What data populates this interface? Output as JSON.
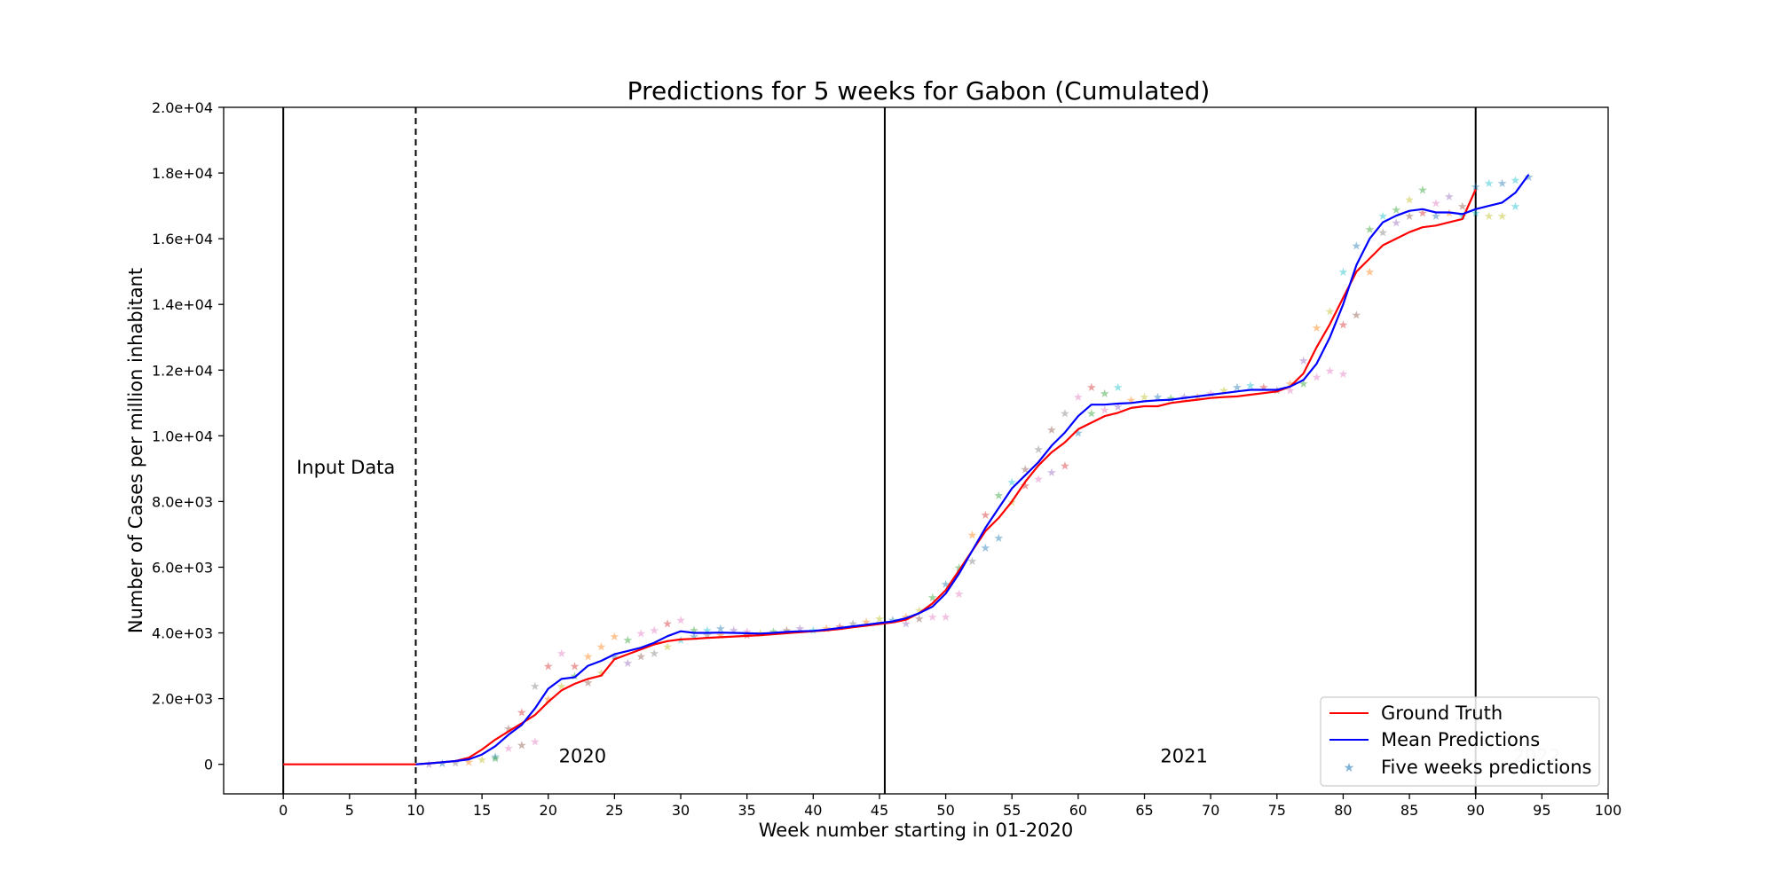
{
  "chart_data": {
    "type": "line",
    "title": "Predictions for 5 weeks for Gabon (Cumulated)",
    "xlabel": "Week number starting in 01-2020",
    "ylabel": "Number of Cases per million inhabitant",
    "xlim": [
      -4.5,
      100
    ],
    "ylim": [
      -900,
      20000
    ],
    "x_ticks": [
      0,
      5,
      10,
      15,
      20,
      25,
      30,
      35,
      40,
      45,
      50,
      55,
      60,
      65,
      70,
      75,
      80,
      85,
      90,
      95,
      100
    ],
    "x_tick_labels": [
      "0",
      "5",
      "10",
      "15",
      "20",
      "25",
      "30",
      "35",
      "40",
      "45",
      "50",
      "55",
      "60",
      "65",
      "70",
      "75",
      "80",
      "85",
      "90",
      "95",
      "100"
    ],
    "y_ticks": [
      0,
      2000,
      4000,
      6000,
      8000,
      10000,
      12000,
      14000,
      16000,
      18000,
      20000
    ],
    "y_tick_labels": [
      "0",
      "2.0e+03",
      "4.0e+03",
      "6.0e+03",
      "8.0e+03",
      "1.0e+04",
      "1.2e+04",
      "1.4e+04",
      "1.6e+04",
      "1.8e+04",
      "2.0e+04"
    ],
    "grid": false,
    "legend_position": "bottom-right",
    "vertical_lines": [
      {
        "x": 0,
        "style": "solid"
      },
      {
        "x": 10,
        "style": "dashed"
      },
      {
        "x": 45.4,
        "style": "solid"
      },
      {
        "x": 90,
        "style": "solid"
      }
    ],
    "annotations": [
      {
        "text": "Input Data",
        "x": 1,
        "y": 8800
      },
      {
        "text": "2020",
        "x": 20.8,
        "y": 0
      },
      {
        "text": "2021",
        "x": 66.2,
        "y": 0
      },
      {
        "text": "2022",
        "x": 92.8,
        "y": 0,
        "faded": true
      }
    ],
    "series": [
      {
        "name": "Ground Truth",
        "color": "#ff0000",
        "x": [
          0,
          1,
          2,
          3,
          4,
          5,
          6,
          7,
          8,
          9,
          10,
          11,
          12,
          13,
          14,
          15,
          16,
          17,
          18,
          19,
          20,
          21,
          22,
          23,
          24,
          25,
          26,
          27,
          28,
          29,
          30,
          31,
          32,
          33,
          34,
          35,
          36,
          37,
          38,
          39,
          40,
          41,
          42,
          43,
          44,
          45,
          46,
          47,
          48,
          49,
          50,
          51,
          52,
          53,
          54,
          55,
          56,
          57,
          58,
          59,
          60,
          61,
          62,
          63,
          64,
          65,
          66,
          67,
          68,
          69,
          70,
          71,
          72,
          73,
          74,
          75,
          76,
          77,
          78,
          79,
          80,
          81,
          82,
          83,
          84,
          85,
          86,
          87,
          88,
          89,
          90
        ],
        "y": [
          0,
          0,
          0,
          0,
          0,
          0,
          0,
          0,
          0,
          0,
          0,
          30,
          60,
          100,
          200,
          450,
          750,
          1000,
          1250,
          1500,
          1900,
          2250,
          2450,
          2600,
          2700,
          3200,
          3350,
          3500,
          3650,
          3750,
          3800,
          3820,
          3850,
          3870,
          3890,
          3910,
          3930,
          3960,
          3990,
          4020,
          4050,
          4080,
          4120,
          4170,
          4220,
          4270,
          4320,
          4400,
          4600,
          4900,
          5300,
          5900,
          6500,
          7100,
          7500,
          8000,
          8600,
          9100,
          9500,
          9800,
          10200,
          10400,
          10600,
          10700,
          10850,
          10900,
          10900,
          11000,
          11050,
          11100,
          11150,
          11180,
          11200,
          11250,
          11300,
          11350,
          11500,
          11900,
          12700,
          13400,
          14200,
          15000,
          15400,
          15800,
          16000,
          16200,
          16350,
          16400,
          16500,
          16600,
          17500
        ]
      },
      {
        "name": "Mean Predictions",
        "color": "#0000ff",
        "x": [
          10,
          11,
          12,
          13,
          14,
          15,
          16,
          17,
          18,
          19,
          20,
          21,
          22,
          23,
          24,
          25,
          26,
          27,
          28,
          29,
          30,
          31,
          32,
          33,
          34,
          35,
          36,
          37,
          38,
          39,
          40,
          41,
          42,
          43,
          44,
          45,
          46,
          47,
          48,
          49,
          50,
          51,
          52,
          53,
          54,
          55,
          56,
          57,
          58,
          59,
          60,
          61,
          62,
          63,
          64,
          65,
          66,
          67,
          68,
          69,
          70,
          71,
          72,
          73,
          74,
          75,
          76,
          77,
          78,
          79,
          80,
          81,
          82,
          83,
          84,
          85,
          86,
          87,
          88,
          89,
          90,
          91,
          92,
          93,
          94
        ],
        "y": [
          0,
          30,
          60,
          100,
          150,
          300,
          550,
          900,
          1200,
          1700,
          2300,
          2600,
          2650,
          3000,
          3150,
          3350,
          3450,
          3550,
          3700,
          3900,
          4050,
          4000,
          4000,
          4010,
          4000,
          3990,
          3980,
          4000,
          4030,
          4050,
          4060,
          4100,
          4150,
          4200,
          4250,
          4300,
          4350,
          4450,
          4600,
          4800,
          5200,
          5800,
          6500,
          7200,
          7800,
          8400,
          8800,
          9200,
          9700,
          10100,
          10600,
          10950,
          10950,
          10980,
          11000,
          11050,
          11080,
          11100,
          11150,
          11200,
          11250,
          11300,
          11350,
          11400,
          11400,
          11400,
          11500,
          11700,
          12200,
          13000,
          14000,
          15200,
          16000,
          16500,
          16700,
          16850,
          16900,
          16800,
          16800,
          16750,
          16900,
          17000,
          17100,
          17400,
          17950
        ]
      },
      {
        "name": "Five weeks predictions",
        "color": "#7fb3d5",
        "marker": "star"
      }
    ]
  },
  "scatter_palette": [
    "#1f77b4",
    "#ff7f0e",
    "#2ca02c",
    "#d62728",
    "#9467bd",
    "#8c564b",
    "#e377c2",
    "#7f7f7f",
    "#bcbd22",
    "#17becf"
  ],
  "scatter_points": [
    {
      "x": 11,
      "y": 20,
      "c": 4
    },
    {
      "x": 12,
      "y": 40,
      "c": 0
    },
    {
      "x": 13,
      "y": 60,
      "c": 7
    },
    {
      "x": 14,
      "y": 90,
      "c": 1
    },
    {
      "x": 15,
      "y": 150,
      "c": 8
    },
    {
      "x": 16,
      "y": 250,
      "c": 0
    },
    {
      "x": 16,
      "y": 200,
      "c": 2
    },
    {
      "x": 17,
      "y": 1100,
      "c": 5
    },
    {
      "x": 17,
      "y": 500,
      "c": 6
    },
    {
      "x": 18,
      "y": 1600,
      "c": 3
    },
    {
      "x": 18,
      "y": 600,
      "c": 5
    },
    {
      "x": 19,
      "y": 2400,
      "c": 7
    },
    {
      "x": 19,
      "y": 700,
      "c": 6
    },
    {
      "x": 20,
      "y": 3000,
      "c": 3
    },
    {
      "x": 20,
      "y": 2000,
      "c": 1
    },
    {
      "x": 21,
      "y": 3400,
      "c": 6
    },
    {
      "x": 21,
      "y": 2400,
      "c": 8
    },
    {
      "x": 22,
      "y": 3000,
      "c": 3
    },
    {
      "x": 22,
      "y": 2700,
      "c": 2
    },
    {
      "x": 23,
      "y": 3300,
      "c": 1
    },
    {
      "x": 23,
      "y": 2500,
      "c": 5
    },
    {
      "x": 24,
      "y": 3600,
      "c": 1
    },
    {
      "x": 24,
      "y": 2800,
      "c": 8
    },
    {
      "x": 25,
      "y": 3900,
      "c": 1
    },
    {
      "x": 25,
      "y": 3300,
      "c": 0
    },
    {
      "x": 26,
      "y": 3800,
      "c": 2
    },
    {
      "x": 26,
      "y": 3100,
      "c": 4
    },
    {
      "x": 27,
      "y": 4000,
      "c": 6
    },
    {
      "x": 27,
      "y": 3300,
      "c": 5
    },
    {
      "x": 28,
      "y": 4100,
      "c": 6
    },
    {
      "x": 28,
      "y": 3400,
      "c": 7
    },
    {
      "x": 29,
      "y": 4300,
      "c": 3
    },
    {
      "x": 29,
      "y": 3600,
      "c": 8
    },
    {
      "x": 30,
      "y": 4400,
      "c": 6
    },
    {
      "x": 30,
      "y": 3800,
      "c": 9
    },
    {
      "x": 31,
      "y": 4100,
      "c": 2
    },
    {
      "x": 31,
      "y": 3900,
      "c": 0
    },
    {
      "x": 32,
      "y": 4100,
      "c": 9
    },
    {
      "x": 32,
      "y": 3950,
      "c": 7
    },
    {
      "x": 33,
      "y": 4150,
      "c": 0
    },
    {
      "x": 33,
      "y": 3950,
      "c": 1
    },
    {
      "x": 34,
      "y": 4100,
      "c": 4
    },
    {
      "x": 35,
      "y": 4050,
      "c": 6
    },
    {
      "x": 35,
      "y": 3950,
      "c": 3
    },
    {
      "x": 36,
      "y": 4000,
      "c": 8
    },
    {
      "x": 37,
      "y": 4050,
      "c": 2
    },
    {
      "x": 38,
      "y": 4100,
      "c": 5
    },
    {
      "x": 39,
      "y": 4150,
      "c": 4
    },
    {
      "x": 40,
      "y": 4100,
      "c": 9
    },
    {
      "x": 41,
      "y": 4150,
      "c": 1
    },
    {
      "x": 42,
      "y": 4200,
      "c": 3
    },
    {
      "x": 43,
      "y": 4300,
      "c": 7
    },
    {
      "x": 44,
      "y": 4350,
      "c": 1
    },
    {
      "x": 45,
      "y": 4450,
      "c": 8
    },
    {
      "x": 46,
      "y": 4400,
      "c": 0
    },
    {
      "x": 47,
      "y": 4500,
      "c": 1
    },
    {
      "x": 47,
      "y": 4300,
      "c": 4
    },
    {
      "x": 48,
      "y": 4700,
      "c": 8
    },
    {
      "x": 48,
      "y": 4450,
      "c": 5
    },
    {
      "x": 49,
      "y": 5100,
      "c": 2
    },
    {
      "x": 49,
      "y": 4500,
      "c": 6
    },
    {
      "x": 50,
      "y": 5500,
      "c": 0
    },
    {
      "x": 50,
      "y": 4500,
      "c": 6
    },
    {
      "x": 51,
      "y": 6000,
      "c": 2
    },
    {
      "x": 51,
      "y": 5200,
      "c": 6
    },
    {
      "x": 52,
      "y": 7000,
      "c": 1
    },
    {
      "x": 52,
      "y": 6200,
      "c": 7
    },
    {
      "x": 53,
      "y": 7600,
      "c": 3
    },
    {
      "x": 53,
      "y": 6600,
      "c": 0
    },
    {
      "x": 54,
      "y": 8200,
      "c": 2
    },
    {
      "x": 54,
      "y": 6900,
      "c": 0
    },
    {
      "x": 55,
      "y": 8600,
      "c": 9
    },
    {
      "x": 55,
      "y": 8000,
      "c": 8
    },
    {
      "x": 56,
      "y": 9000,
      "c": 5
    },
    {
      "x": 56,
      "y": 8500,
      "c": 3
    },
    {
      "x": 57,
      "y": 9600,
      "c": 7
    },
    {
      "x": 57,
      "y": 8700,
      "c": 6
    },
    {
      "x": 58,
      "y": 10200,
      "c": 5
    },
    {
      "x": 58,
      "y": 8900,
      "c": 4
    },
    {
      "x": 59,
      "y": 10700,
      "c": 7
    },
    {
      "x": 59,
      "y": 9100,
      "c": 3
    },
    {
      "x": 60,
      "y": 11200,
      "c": 6
    },
    {
      "x": 60,
      "y": 10100,
      "c": 0
    },
    {
      "x": 61,
      "y": 11500,
      "c": 3
    },
    {
      "x": 61,
      "y": 10700,
      "c": 2
    },
    {
      "x": 62,
      "y": 11300,
      "c": 2
    },
    {
      "x": 62,
      "y": 10800,
      "c": 6
    },
    {
      "x": 63,
      "y": 11500,
      "c": 9
    },
    {
      "x": 63,
      "y": 10900,
      "c": 4
    },
    {
      "x": 64,
      "y": 11100,
      "c": 1
    },
    {
      "x": 65,
      "y": 11200,
      "c": 8
    },
    {
      "x": 66,
      "y": 11200,
      "c": 0
    },
    {
      "x": 67,
      "y": 11150,
      "c": 2
    },
    {
      "x": 68,
      "y": 11200,
      "c": 4
    },
    {
      "x": 69,
      "y": 11200,
      "c": 1
    },
    {
      "x": 70,
      "y": 11300,
      "c": 6
    },
    {
      "x": 71,
      "y": 11400,
      "c": 8
    },
    {
      "x": 72,
      "y": 11500,
      "c": 0
    },
    {
      "x": 73,
      "y": 11550,
      "c": 9
    },
    {
      "x": 74,
      "y": 11500,
      "c": 3
    },
    {
      "x": 75,
      "y": 11400,
      "c": 5
    },
    {
      "x": 76,
      "y": 11600,
      "c": 1
    },
    {
      "x": 76,
      "y": 11400,
      "c": 6
    },
    {
      "x": 77,
      "y": 12300,
      "c": 4
    },
    {
      "x": 77,
      "y": 11600,
      "c": 2
    },
    {
      "x": 78,
      "y": 13300,
      "c": 1
    },
    {
      "x": 78,
      "y": 11800,
      "c": 6
    },
    {
      "x": 79,
      "y": 13800,
      "c": 8
    },
    {
      "x": 79,
      "y": 12000,
      "c": 6
    },
    {
      "x": 80,
      "y": 15000,
      "c": 9
    },
    {
      "x": 80,
      "y": 13400,
      "c": 3
    },
    {
      "x": 80,
      "y": 11900,
      "c": 6
    },
    {
      "x": 81,
      "y": 15800,
      "c": 0
    },
    {
      "x": 81,
      "y": 13700,
      "c": 5
    },
    {
      "x": 82,
      "y": 16300,
      "c": 2
    },
    {
      "x": 82,
      "y": 15000,
      "c": 1
    },
    {
      "x": 83,
      "y": 16700,
      "c": 9
    },
    {
      "x": 83,
      "y": 16200,
      "c": 7
    },
    {
      "x": 84,
      "y": 16900,
      "c": 2
    },
    {
      "x": 84,
      "y": 16500,
      "c": 4
    },
    {
      "x": 85,
      "y": 17200,
      "c": 8
    },
    {
      "x": 85,
      "y": 16700,
      "c": 5
    },
    {
      "x": 86,
      "y": 17500,
      "c": 2
    },
    {
      "x": 86,
      "y": 16800,
      "c": 3
    },
    {
      "x": 87,
      "y": 17100,
      "c": 6
    },
    {
      "x": 87,
      "y": 16700,
      "c": 0
    },
    {
      "x": 88,
      "y": 17300,
      "c": 4
    },
    {
      "x": 88,
      "y": 16800,
      "c": 1
    },
    {
      "x": 89,
      "y": 17000,
      "c": 5
    },
    {
      "x": 89,
      "y": 16700,
      "c": 9
    },
    {
      "x": 90,
      "y": 17600,
      "c": 0
    },
    {
      "x": 90,
      "y": 16800,
      "c": 9
    },
    {
      "x": 91,
      "y": 17700,
      "c": 9
    },
    {
      "x": 91,
      "y": 16700,
      "c": 8
    },
    {
      "x": 92,
      "y": 17700,
      "c": 0
    },
    {
      "x": 92,
      "y": 16700,
      "c": 8
    },
    {
      "x": 93,
      "y": 17800,
      "c": 9
    },
    {
      "x": 93,
      "y": 17000,
      "c": 9
    },
    {
      "x": 94,
      "y": 17900,
      "c": 0
    }
  ]
}
